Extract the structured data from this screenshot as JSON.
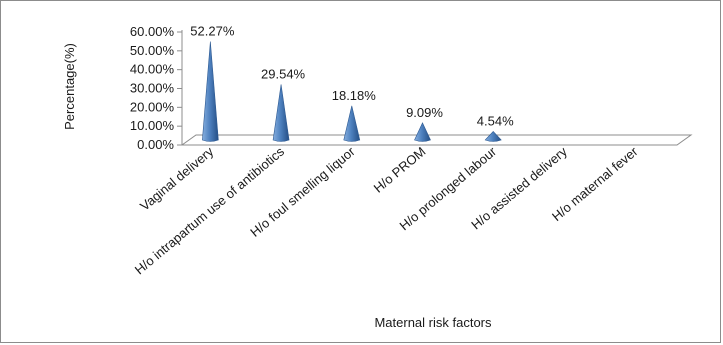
{
  "chart_data": {
    "type": "bar",
    "style": "3d-cone",
    "title": "",
    "xlabel": "Maternal risk factors",
    "ylabel": "Percentage(%)",
    "ylim": [
      0,
      60
    ],
    "yticks": [
      "0.00%",
      "10.00%",
      "20.00%",
      "30.00%",
      "40.00%",
      "50.00%",
      "60.00%"
    ],
    "categories": [
      "Vaginal delivery",
      "H/o intrapartum use of antibiotics",
      "H/o foul smelling liquor",
      "H/o PROM",
      "H/o prolonged labour",
      "H/o assisted delivery",
      "H/o maternal fever"
    ],
    "values": [
      52.27,
      29.54,
      18.18,
      9.09,
      4.54,
      0,
      0
    ],
    "data_labels": [
      "52.27%",
      "29.54%",
      "18.18%",
      "9.09%",
      "4.54%",
      "",
      ""
    ],
    "bar_color": "#4a7ebb",
    "legend": "none",
    "grid": false
  }
}
